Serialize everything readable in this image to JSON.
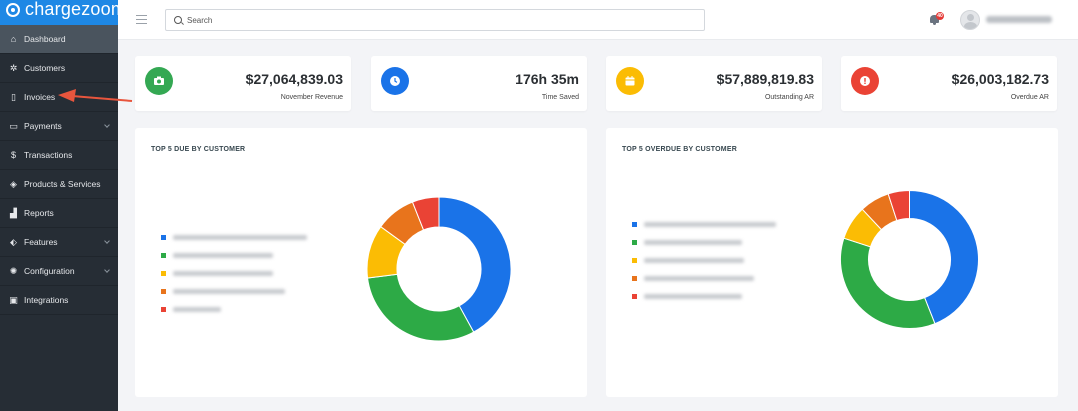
{
  "brand": {
    "name": "chargezoom"
  },
  "sidebar": {
    "items": [
      {
        "label": "Dashboard",
        "icon": "home-icon",
        "active": true,
        "expandable": false
      },
      {
        "label": "Customers",
        "icon": "users-icon",
        "active": false,
        "expandable": false
      },
      {
        "label": "Invoices",
        "icon": "invoice-icon",
        "active": false,
        "expandable": false
      },
      {
        "label": "Payments",
        "icon": "card-icon",
        "active": false,
        "expandable": true
      },
      {
        "label": "Transactions",
        "icon": "dollar-icon",
        "active": false,
        "expandable": false
      },
      {
        "label": "Products & Services",
        "icon": "box-icon",
        "active": false,
        "expandable": false
      },
      {
        "label": "Reports",
        "icon": "bar-chart-icon",
        "active": false,
        "expandable": false
      },
      {
        "label": "Features",
        "icon": "tag-icon",
        "active": false,
        "expandable": true
      },
      {
        "label": "Configuration",
        "icon": "gear-icon",
        "active": false,
        "expandable": true
      },
      {
        "label": "Integrations",
        "icon": "plug-icon",
        "active": false,
        "expandable": false
      }
    ]
  },
  "topbar": {
    "search_placeholder": "Search",
    "notification_count": "40"
  },
  "stats": [
    {
      "value": "$27,064,839.03",
      "label": "November Revenue",
      "icon": "camera-icon",
      "color": "#34a853"
    },
    {
      "value": "176h 35m",
      "label": "Time Saved",
      "icon": "clock-icon",
      "color": "#1a73e8"
    },
    {
      "value": "$57,889,819.83",
      "label": "Outstanding AR",
      "icon": "calendar-icon",
      "color": "#fbbc04"
    },
    {
      "value": "$26,003,182.73",
      "label": "Overdue AR",
      "icon": "alert-icon",
      "color": "#ea4335"
    }
  ],
  "panels": [
    {
      "title": "TOP 5 DUE BY CUSTOMER",
      "chart_data": {
        "type": "pie",
        "donut": true,
        "values": [
          42,
          31,
          12,
          9,
          6
        ],
        "colors": [
          "#1a73e8",
          "#2daa46",
          "#fbbc04",
          "#e8741c",
          "#ea4335"
        ]
      }
    },
    {
      "title": "TOP 5 OVERDUE BY CUSTOMER",
      "chart_data": {
        "type": "pie",
        "donut": true,
        "values": [
          44,
          36,
          8,
          7,
          5
        ],
        "colors": [
          "#1a73e8",
          "#2daa46",
          "#fbbc04",
          "#e8741c",
          "#ea4335"
        ]
      }
    }
  ],
  "annotation": {
    "target": "Invoices",
    "color": "#e8553d"
  }
}
